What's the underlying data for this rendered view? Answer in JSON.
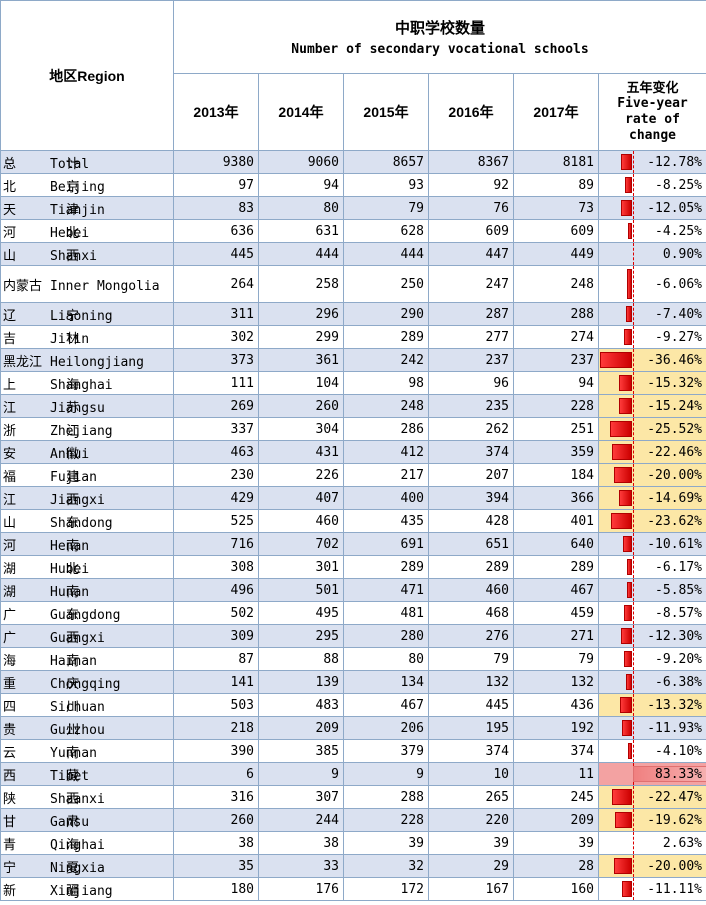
{
  "header": {
    "region": "地区Region",
    "title_zh": "中职学校数量",
    "title_en": "Number of secondary vocational schools",
    "years": [
      "2013年",
      "2014年",
      "2015年",
      "2016年",
      "2017年"
    ],
    "change_zh": "五年变化",
    "change_en1": "Five-year",
    "change_en2": "rate of",
    "change_en3": "change"
  },
  "rows": [
    {
      "zh": "总 计",
      "en": "Total",
      "v": [
        9380,
        9060,
        8657,
        8367,
        8181
      ],
      "chg": "-12.78%",
      "pct": -12.78
    },
    {
      "zh": "北 京",
      "en": "Beijing",
      "v": [
        97,
        94,
        93,
        92,
        89
      ],
      "chg": "-8.25%",
      "pct": -8.25
    },
    {
      "zh": "天 津",
      "en": "Tianjin",
      "v": [
        83,
        80,
        79,
        76,
        73
      ],
      "chg": "-12.05%",
      "pct": -12.05
    },
    {
      "zh": "河 北",
      "en": "Hebei",
      "v": [
        636,
        631,
        628,
        609,
        609
      ],
      "chg": "-4.25%",
      "pct": -4.25
    },
    {
      "zh": "山 西",
      "en": "Shanxi",
      "v": [
        445,
        444,
        444,
        447,
        449
      ],
      "chg": "0.90%",
      "pct": 0.9
    },
    {
      "zh": "内蒙古",
      "en": "Inner Mongolia",
      "v": [
        264,
        258,
        250,
        247,
        248
      ],
      "chg": "-6.06%",
      "pct": -6.06
    },
    {
      "zh": "辽 宁",
      "en": "Liaoning",
      "v": [
        311,
        296,
        290,
        287,
        288
      ],
      "chg": "-7.40%",
      "pct": -7.4
    },
    {
      "zh": "吉 林",
      "en": "Jilin",
      "v": [
        302,
        299,
        289,
        277,
        274
      ],
      "chg": "-9.27%",
      "pct": -9.27
    },
    {
      "zh": "黑龙江",
      "en": "Heilongjiang",
      "v": [
        373,
        361,
        242,
        237,
        237
      ],
      "chg": "-36.46%",
      "pct": -36.46
    },
    {
      "zh": "上 海",
      "en": "Shanghai",
      "v": [
        111,
        104,
        98,
        96,
        94
      ],
      "chg": "-15.32%",
      "pct": -15.32
    },
    {
      "zh": "江 苏",
      "en": "Jiangsu",
      "v": [
        269,
        260,
        248,
        235,
        228
      ],
      "chg": "-15.24%",
      "pct": -15.24
    },
    {
      "zh": "浙 江",
      "en": "Zhejiang",
      "v": [
        337,
        304,
        286,
        262,
        251
      ],
      "chg": "-25.52%",
      "pct": -25.52
    },
    {
      "zh": "安 徽",
      "en": "Anhui",
      "v": [
        463,
        431,
        412,
        374,
        359
      ],
      "chg": "-22.46%",
      "pct": -22.46
    },
    {
      "zh": "福 建",
      "en": "Fujian",
      "v": [
        230,
        226,
        217,
        207,
        184
      ],
      "chg": "-20.00%",
      "pct": -20.0
    },
    {
      "zh": "江 西",
      "en": "Jiangxi",
      "v": [
        429,
        407,
        400,
        394,
        366
      ],
      "chg": "-14.69%",
      "pct": -14.69
    },
    {
      "zh": "山 东",
      "en": "Shandong",
      "v": [
        525,
        460,
        435,
        428,
        401
      ],
      "chg": "-23.62%",
      "pct": -23.62
    },
    {
      "zh": "河 南",
      "en": "Henan",
      "v": [
        716,
        702,
        691,
        651,
        640
      ],
      "chg": "-10.61%",
      "pct": -10.61
    },
    {
      "zh": "湖 北",
      "en": "Hubei",
      "v": [
        308,
        301,
        289,
        289,
        289
      ],
      "chg": "-6.17%",
      "pct": -6.17
    },
    {
      "zh": "湖 南",
      "en": "Hunan",
      "v": [
        496,
        501,
        471,
        460,
        467
      ],
      "chg": "-5.85%",
      "pct": -5.85
    },
    {
      "zh": "广 东",
      "en": "Guangdong",
      "v": [
        502,
        495,
        481,
        468,
        459
      ],
      "chg": "-8.57%",
      "pct": -8.57
    },
    {
      "zh": "广 西",
      "en": "Guangxi",
      "v": [
        309,
        295,
        280,
        276,
        271
      ],
      "chg": "-12.30%",
      "pct": -12.3
    },
    {
      "zh": "海 南",
      "en": "Hainan",
      "v": [
        87,
        88,
        80,
        79,
        79
      ],
      "chg": "-9.20%",
      "pct": -9.2
    },
    {
      "zh": "重 庆",
      "en": "Chongqing",
      "v": [
        141,
        139,
        134,
        132,
        132
      ],
      "chg": "-6.38%",
      "pct": -6.38
    },
    {
      "zh": "四 川",
      "en": "Sichuan",
      "v": [
        503,
        483,
        467,
        445,
        436
      ],
      "chg": "-13.32%",
      "pct": -13.32
    },
    {
      "zh": "贵 州",
      "en": "Guizhou",
      "v": [
        218,
        209,
        206,
        195,
        192
      ],
      "chg": "-11.93%",
      "pct": -11.93
    },
    {
      "zh": "云 南",
      "en": "Yunnan",
      "v": [
        390,
        385,
        379,
        374,
        374
      ],
      "chg": "-4.10%",
      "pct": -4.1
    },
    {
      "zh": "西 藏",
      "en": "Tibet",
      "v": [
        6,
        9,
        9,
        10,
        11
      ],
      "chg": "83.33%",
      "pct": 83.33
    },
    {
      "zh": "陕 西",
      "en": "Shaanxi",
      "v": [
        316,
        307,
        288,
        265,
        245
      ],
      "chg": "-22.47%",
      "pct": -22.47
    },
    {
      "zh": "甘 肃",
      "en": "Gansu",
      "v": [
        260,
        244,
        228,
        220,
        209
      ],
      "chg": "-19.62%",
      "pct": -19.62
    },
    {
      "zh": "青 海",
      "en": "Qinghai",
      "v": [
        38,
        38,
        39,
        39,
        39
      ],
      "chg": "2.63%",
      "pct": 2.63
    },
    {
      "zh": "宁 夏",
      "en": "Ningxia",
      "v": [
        35,
        33,
        32,
        29,
        28
      ],
      "chg": "-20.00%",
      "pct": -20.0
    },
    {
      "zh": "新 疆",
      "en": "Xinjiang",
      "v": [
        180,
        176,
        172,
        167,
        160
      ],
      "chg": "-11.11%",
      "pct": -11.11
    }
  ],
  "colors": {
    "band": "#dae1f0",
    "highlight": "#fce7a6",
    "bar": "#e00000",
    "positive_large": "#f3a2a2"
  }
}
